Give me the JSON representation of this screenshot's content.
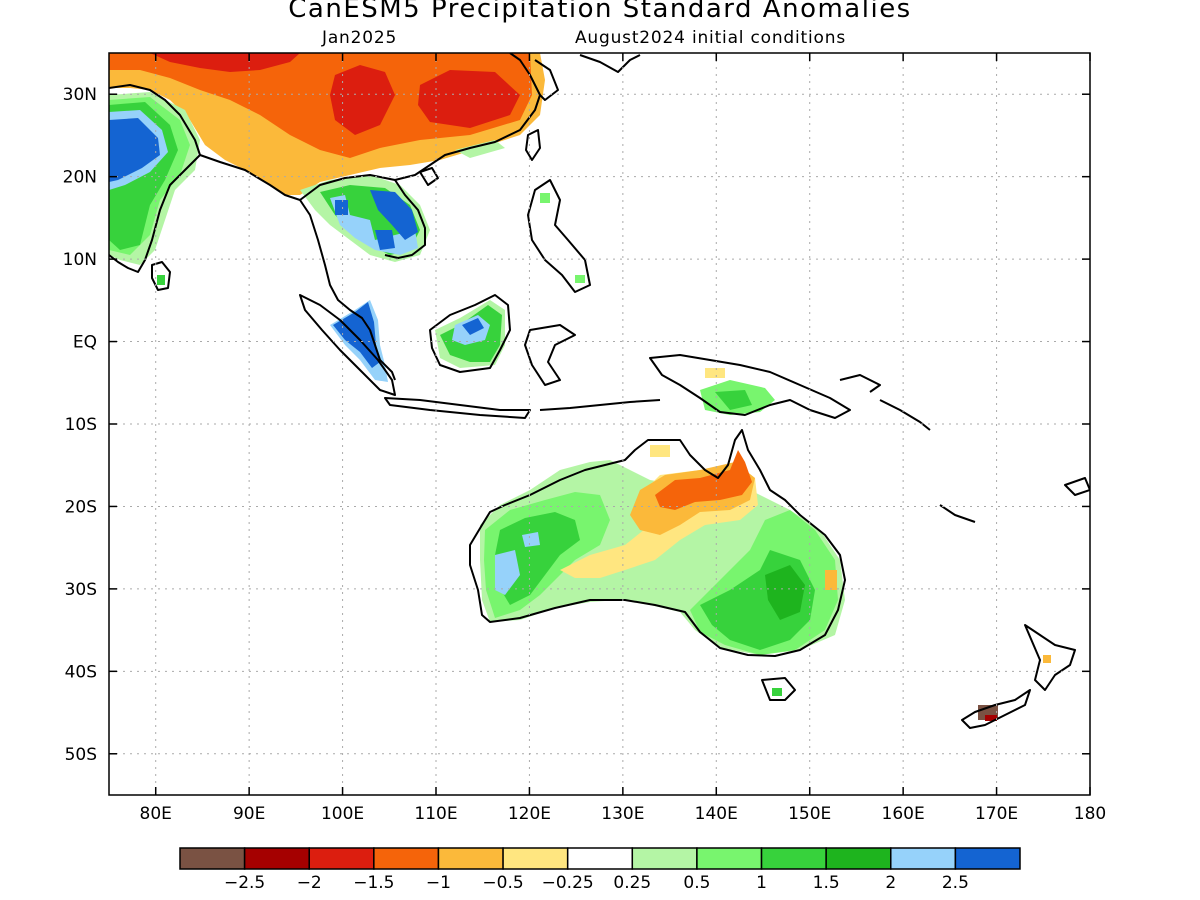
{
  "title": "CanESM5 Precipitation Standard Anomalies",
  "forecast_month": "Jan2025",
  "initial_conditions": "August2024 initial conditions",
  "map": {
    "lon_range": [
      75,
      180
    ],
    "lat_range": [
      -55,
      35
    ],
    "lon_ticks": [
      {
        "lon": 80,
        "label": "80E"
      },
      {
        "lon": 90,
        "label": "90E"
      },
      {
        "lon": 100,
        "label": "100E"
      },
      {
        "lon": 110,
        "label": "110E"
      },
      {
        "lon": 120,
        "label": "120E"
      },
      {
        "lon": 130,
        "label": "130E"
      },
      {
        "lon": 140,
        "label": "140E"
      },
      {
        "lon": 150,
        "label": "150E"
      },
      {
        "lon": 160,
        "label": "160E"
      },
      {
        "lon": 170,
        "label": "170E"
      },
      {
        "lon": 180,
        "label": "180"
      }
    ],
    "lat_ticks": [
      {
        "lat": 30,
        "label": "30N"
      },
      {
        "lat": 20,
        "label": "20N"
      },
      {
        "lat": 10,
        "label": "10N"
      },
      {
        "lat": 0,
        "label": "EQ"
      },
      {
        "lat": -10,
        "label": "10S"
      },
      {
        "lat": -20,
        "label": "20S"
      },
      {
        "lat": -30,
        "label": "30S"
      },
      {
        "lat": -40,
        "label": "40S"
      },
      {
        "lat": -50,
        "label": "50S"
      }
    ],
    "grid": true
  },
  "colorbar": {
    "colors": [
      "#7a5243",
      "#a50000",
      "#dc1e0f",
      "#f5640a",
      "#fbb93a",
      "#ffe680",
      "#ffffff",
      "#b4f5a5",
      "#78f56e",
      "#37d23c",
      "#1eb41e",
      "#96d2fa",
      "#1464d2"
    ],
    "labels": [
      "−2.5",
      "−2",
      "−1.5",
      "−1",
      "−0.5",
      "−0.25",
      "0.25",
      "0.5",
      "1",
      "1.5",
      "2",
      "2.5"
    ]
  }
}
